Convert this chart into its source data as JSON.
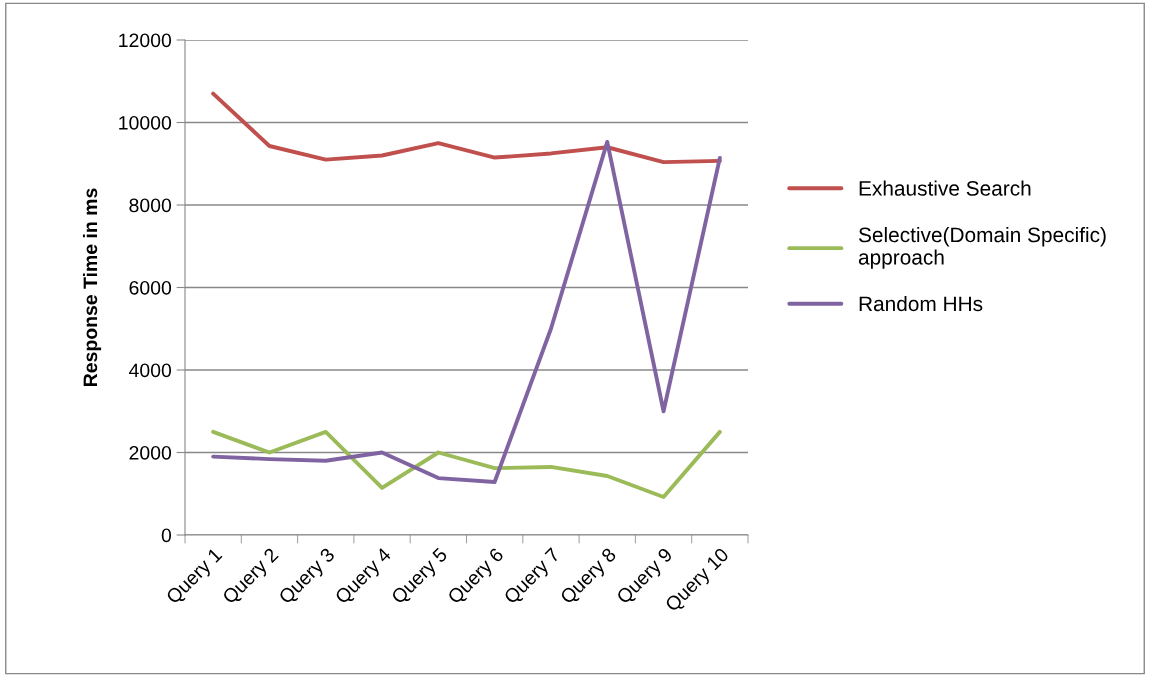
{
  "chart_data": {
    "type": "line",
    "ylabel": "Response Time in ms",
    "categories": [
      "Query 1",
      "Query 2",
      "Query 3",
      "Query 4",
      "Query 5",
      "Query 6",
      "Query 7",
      "Query 8",
      "Query 9",
      "Query 10"
    ],
    "series": [
      {
        "name": "Exhaustive Search",
        "color": "#c0504d",
        "values": [
          10700,
          9430,
          9100,
          9200,
          9500,
          9150,
          9250,
          9400,
          9040,
          9070
        ]
      },
      {
        "name": "Selective(Domain Specific) approach",
        "color": "#9bbb59",
        "values": [
          2500,
          2000,
          2500,
          1140,
          2000,
          1620,
          1650,
          1430,
          920,
          2500
        ]
      },
      {
        "name": "Random HHs",
        "color": "#8064a2",
        "values": [
          1900,
          1840,
          1800,
          2000,
          1380,
          1285,
          5000,
          9530,
          3000,
          9140
        ]
      }
    ],
    "ylim": [
      0,
      12000
    ],
    "yticks": [
      0,
      2000,
      4000,
      6000,
      8000,
      10000,
      12000
    ],
    "grid": "y",
    "legend": "right",
    "marker": "none",
    "line_style": "solid"
  }
}
